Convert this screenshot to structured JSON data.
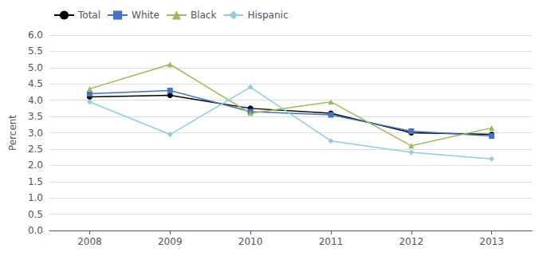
{
  "chart_data": {
    "type": "line",
    "x": [
      2008,
      2009,
      2010,
      2011,
      2012,
      2013
    ],
    "xlim": [
      2007.5,
      2013.5
    ],
    "xticks": [
      2008,
      2009,
      2010,
      2011,
      2012,
      2013
    ],
    "ylim": [
      0,
      6
    ],
    "yticks": [
      {
        "value": 0,
        "label": "0.0"
      },
      0.5,
      {
        "value": 1,
        "label": "1.0"
      },
      1.5,
      {
        "value": 2,
        "label": "2.0"
      },
      2.5,
      {
        "value": 3,
        "label": "3.0"
      },
      3.5,
      {
        "value": 4,
        "label": "4.0"
      },
      4.5,
      {
        "value": 5,
        "label": "5.0"
      },
      5.5,
      {
        "value": 6,
        "label": "6.0"
      }
    ],
    "ylabel": "Percent",
    "grid": true,
    "legend": "top",
    "series": [
      {
        "name": "Total",
        "color": "#000000",
        "marker": "circle",
        "values": [
          4.1,
          4.15,
          3.75,
          3.6,
          3.0,
          2.95
        ]
      },
      {
        "name": "White",
        "color": "#4472C4",
        "marker": "square",
        "values": [
          4.2,
          4.3,
          3.65,
          3.55,
          3.05,
          2.9
        ]
      },
      {
        "name": "Black",
        "color": "#9BBB59",
        "marker": "triangle",
        "values": [
          4.35,
          5.1,
          3.6,
          3.95,
          2.6,
          3.15
        ]
      },
      {
        "name": "Hispanic",
        "color": "#92CDDC",
        "marker": "diamond",
        "values": [
          3.95,
          2.95,
          4.4,
          2.75,
          2.4,
          2.2
        ]
      }
    ]
  }
}
